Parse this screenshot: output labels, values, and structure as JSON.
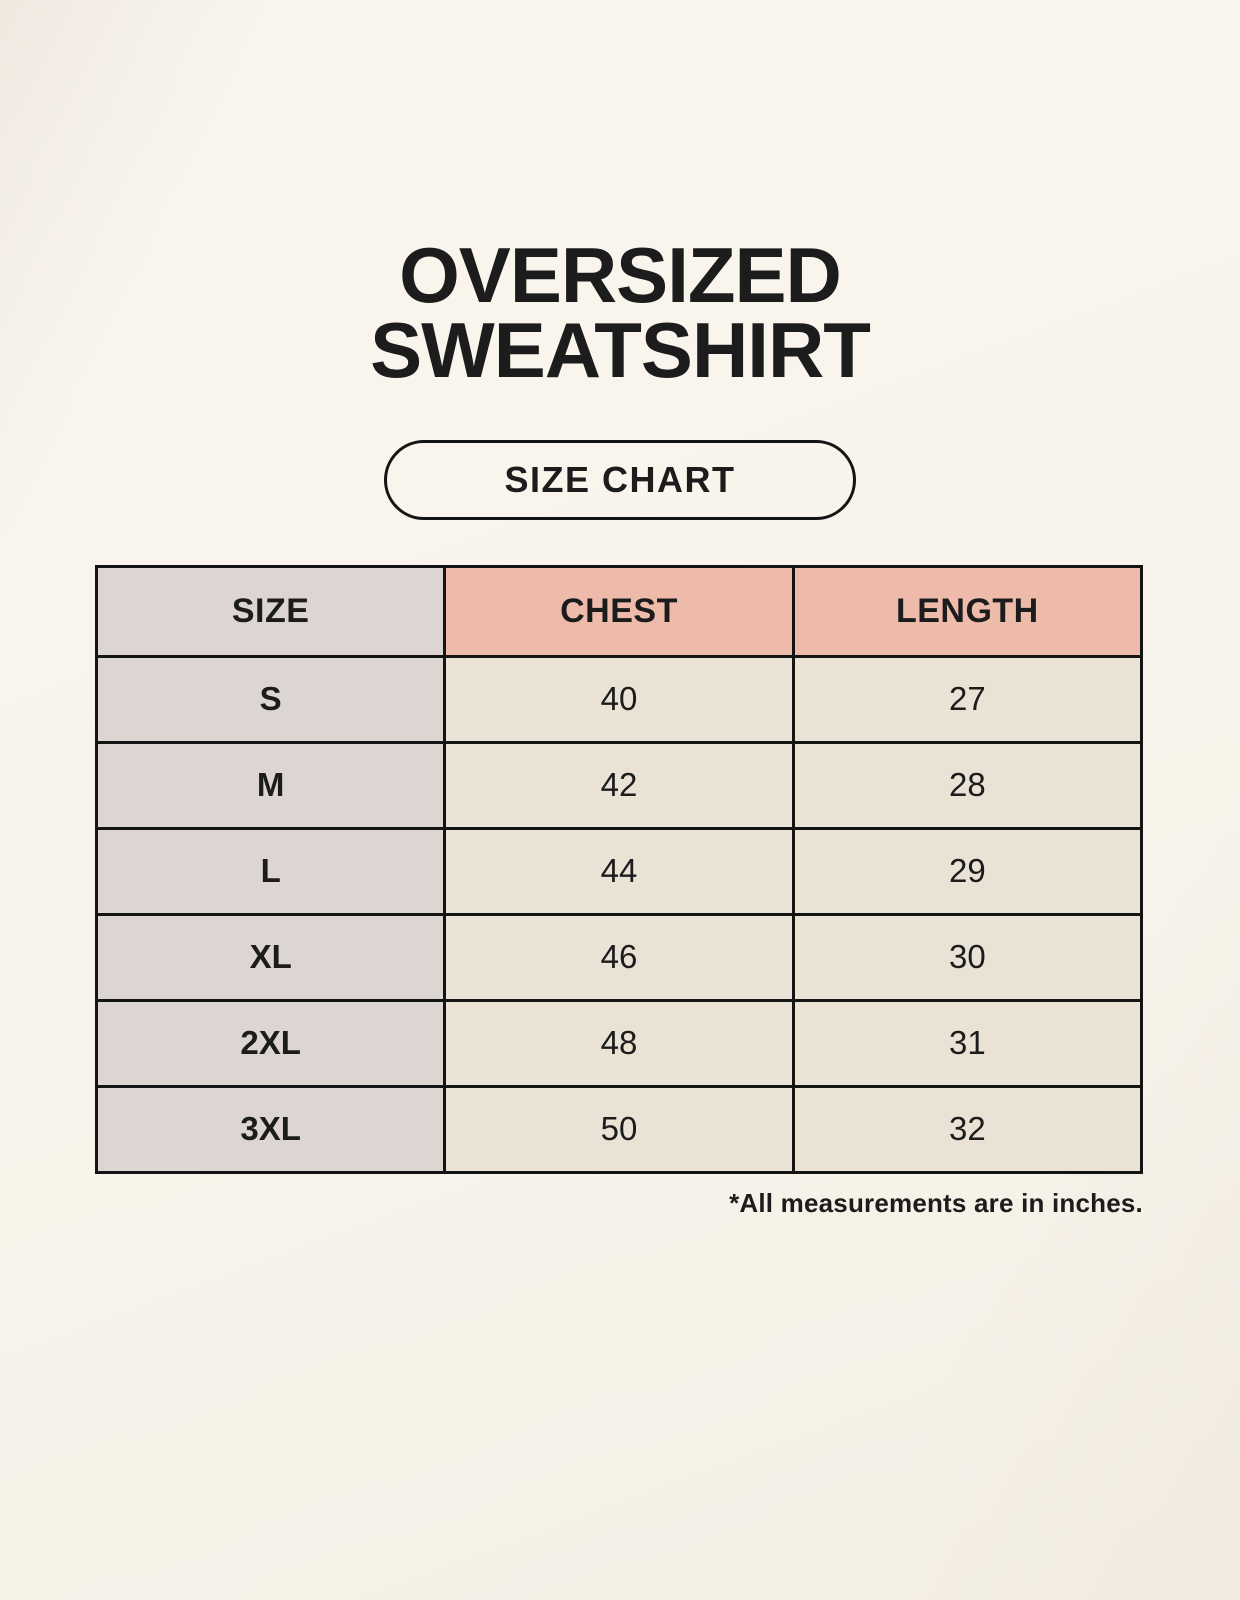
{
  "page": {
    "title": "OVERSIZED SWEATSHIRT",
    "badge_label": "SIZE CHART",
    "footnote": "*All measurements are in inches."
  },
  "table": {
    "columns": [
      "SIZE",
      "CHEST",
      "LENGTH"
    ],
    "rows": [
      {
        "size": "S",
        "chest": "40",
        "length": "27"
      },
      {
        "size": "M",
        "chest": "42",
        "length": "28"
      },
      {
        "size": "L",
        "chest": "44",
        "length": "29"
      },
      {
        "size": "XL",
        "chest": "46",
        "length": "30"
      },
      {
        "size": "2XL",
        "chest": "48",
        "length": "31"
      },
      {
        "size": "3XL",
        "chest": "50",
        "length": "32"
      }
    ]
  },
  "chart_data": {
    "type": "table",
    "title": "OVERSIZED SWEATSHIRT — SIZE CHART",
    "columns": [
      "SIZE",
      "CHEST",
      "LENGTH"
    ],
    "rows": [
      [
        "S",
        40,
        27
      ],
      [
        "M",
        42,
        28
      ],
      [
        "L",
        44,
        29
      ],
      [
        "XL",
        46,
        30
      ],
      [
        "2XL",
        48,
        31
      ],
      [
        "3XL",
        50,
        32
      ]
    ],
    "units": "inches",
    "note": "*All measurements are in inches."
  },
  "colors": {
    "background": "#f8f4eb",
    "accent_header": "#eebbab",
    "neutral_cell": "#ddd5d1",
    "value_cell": "#e9e2d5",
    "border": "#141414",
    "text": "#1c1c1c"
  }
}
